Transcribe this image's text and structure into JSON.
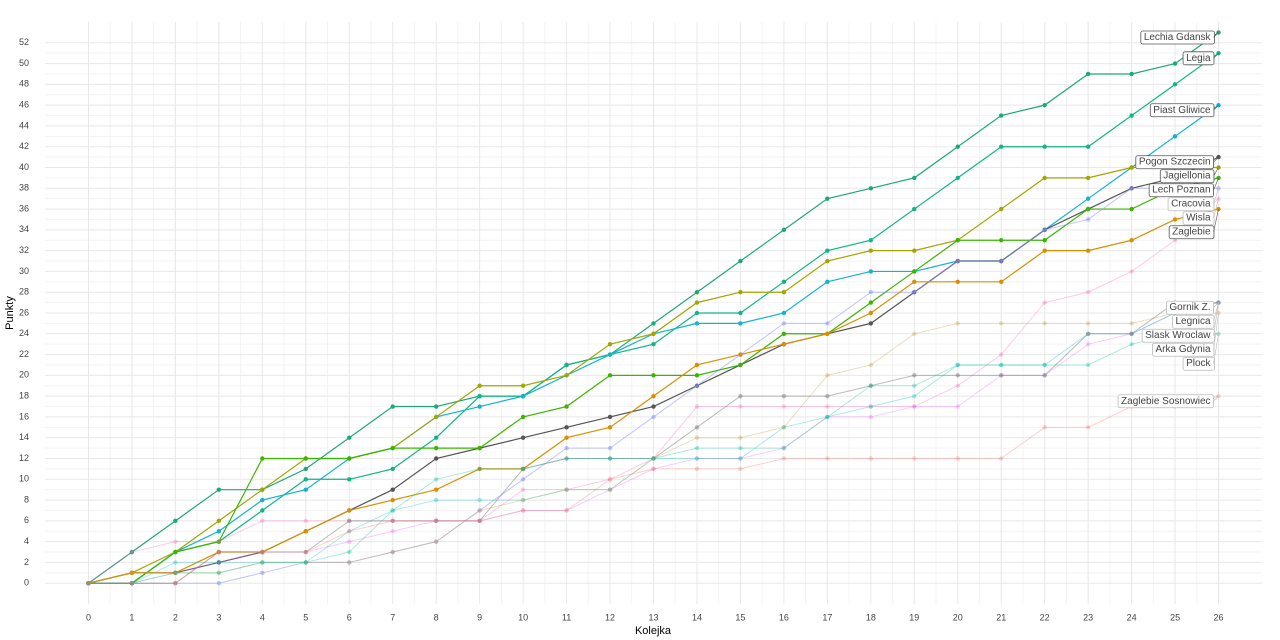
{
  "chart_data": {
    "type": "line",
    "x_label": "Kolejka",
    "y_label": "Punkty",
    "x": [
      0,
      1,
      2,
      3,
      4,
      5,
      6,
      7,
      8,
      9,
      10,
      11,
      12,
      13,
      14,
      15,
      16,
      17,
      18,
      19,
      20,
      21,
      22,
      23,
      24,
      25,
      26
    ],
    "xlim": [
      -1,
      27
    ],
    "xticks": [
      0,
      1,
      2,
      3,
      4,
      5,
      6,
      7,
      8,
      9,
      10,
      11,
      12,
      13,
      14,
      15,
      16,
      17,
      18,
      19,
      20,
      21,
      22,
      23,
      24,
      25,
      26
    ],
    "ylim": [
      -2,
      54
    ],
    "yticks": [
      0,
      2,
      4,
      6,
      8,
      10,
      12,
      14,
      16,
      18,
      20,
      22,
      24,
      26,
      28,
      30,
      32,
      34,
      36,
      38,
      40,
      42,
      44,
      46,
      48,
      50,
      52
    ],
    "grid": true,
    "series": [
      {
        "name": "Lechia Gdansk",
        "color": "#1fa77a",
        "values": [
          0,
          3,
          6,
          9,
          9,
          11,
          14,
          17,
          17,
          18,
          18,
          21,
          22,
          25,
          28,
          31,
          34,
          37,
          38,
          39,
          42,
          45,
          46,
          49,
          49,
          50,
          53
        ]
      },
      {
        "name": "Legia",
        "color": "#12b48a",
        "values": [
          0,
          0,
          3,
          4,
          7,
          10,
          10,
          11,
          14,
          18,
          18,
          21,
          22,
          23,
          26,
          26,
          29,
          32,
          33,
          36,
          39,
          42,
          42,
          42,
          45,
          48,
          51
        ]
      },
      {
        "name": "Piast Gliwice",
        "color": "#13b3d0",
        "values": [
          0,
          0,
          3,
          5,
          8,
          9,
          12,
          13,
          16,
          17,
          18,
          20,
          22,
          24,
          25,
          25,
          26,
          29,
          30,
          30,
          31,
          31,
          34,
          37,
          40,
          43,
          46
        ]
      },
      {
        "name": "Pogon Szczecin",
        "color": "#555555",
        "values": [
          0,
          1,
          1,
          2,
          3,
          5,
          7,
          9,
          12,
          13,
          14,
          15,
          16,
          17,
          19,
          21,
          23,
          24,
          25,
          28,
          31,
          31,
          34,
          36,
          38,
          39,
          41
        ]
      },
      {
        "name": "Jagiellonia",
        "color": "#a3a500",
        "values": [
          0,
          1,
          3,
          6,
          9,
          12,
          12,
          13,
          16,
          19,
          19,
          20,
          23,
          24,
          27,
          28,
          28,
          31,
          32,
          32,
          33,
          36,
          39,
          39,
          40,
          40,
          40
        ]
      },
      {
        "name": "Lech Poznan",
        "color": "#39b600",
        "values": [
          0,
          0,
          3,
          4,
          12,
          12,
          12,
          13,
          13,
          13,
          16,
          17,
          20,
          20,
          20,
          21,
          24,
          24,
          27,
          30,
          33,
          33,
          33,
          36,
          36,
          38,
          39
        ]
      },
      {
        "name": "Cracovia",
        "color": "#8b93ff88",
        "values": [
          0,
          0,
          0,
          0,
          1,
          2,
          2,
          3,
          4,
          7,
          10,
          13,
          13,
          16,
          19,
          22,
          25,
          25,
          28,
          28,
          31,
          31,
          34,
          35,
          38,
          38,
          38
        ]
      },
      {
        "name": "Wisla",
        "color": "#ff62bc55",
        "values": [
          0,
          3,
          4,
          4,
          6,
          6,
          6,
          6,
          6,
          6,
          9,
          9,
          10,
          12,
          17,
          17,
          17,
          17,
          17,
          17,
          19,
          22,
          27,
          28,
          30,
          33,
          37
        ]
      },
      {
        "name": "Zaglebie",
        "color": "#d89000",
        "values": [
          0,
          1,
          1,
          3,
          3,
          5,
          7,
          8,
          9,
          11,
          11,
          14,
          15,
          18,
          21,
          22,
          23,
          24,
          26,
          29,
          29,
          29,
          32,
          32,
          33,
          35,
          36
        ]
      },
      {
        "name": "Gornik Z.",
        "color": "#e76bf355",
        "values": [
          0,
          0,
          1,
          2,
          3,
          3,
          4,
          5,
          6,
          6,
          7,
          7,
          9,
          11,
          12,
          12,
          13,
          16,
          16,
          17,
          17,
          20,
          20,
          23,
          24,
          26,
          27
        ]
      },
      {
        "name": "Legnica",
        "color": "#00bfc455",
        "values": [
          0,
          0,
          2,
          2,
          2,
          2,
          5,
          7,
          8,
          8,
          8,
          9,
          9,
          12,
          12,
          12,
          15,
          16,
          17,
          18,
          21,
          21,
          21,
          24,
          24,
          26,
          27
        ]
      },
      {
        "name": "Slask Wroclaw",
        "color": "#7f7f7f88",
        "values": [
          0,
          0,
          0,
          3,
          3,
          3,
          6,
          6,
          6,
          6,
          11,
          12,
          12,
          12,
          15,
          18,
          18,
          18,
          19,
          20,
          20,
          20,
          20,
          24,
          24,
          27,
          27
        ]
      },
      {
        "name": "Arka Gdynia",
        "color": "#c0a04055",
        "values": [
          0,
          1,
          1,
          1,
          2,
          2,
          2,
          3,
          4,
          7,
          8,
          9,
          9,
          12,
          14,
          14,
          15,
          20,
          21,
          24,
          25,
          25,
          25,
          25,
          25,
          26,
          26
        ]
      },
      {
        "name": "Plock",
        "color": "#00c19a55",
        "values": [
          0,
          0,
          1,
          1,
          2,
          2,
          3,
          7,
          10,
          11,
          11,
          12,
          12,
          12,
          13,
          13,
          13,
          16,
          19,
          19,
          21,
          21,
          21,
          21,
          23,
          24,
          24
        ]
      },
      {
        "name": "Zaglebie Sosnowiec",
        "color": "#f8766d55",
        "values": [
          0,
          0,
          0,
          3,
          3,
          3,
          5,
          6,
          6,
          6,
          7,
          7,
          10,
          11,
          11,
          11,
          12,
          12,
          12,
          12,
          12,
          12,
          15,
          15,
          17,
          17,
          18
        ]
      }
    ]
  }
}
